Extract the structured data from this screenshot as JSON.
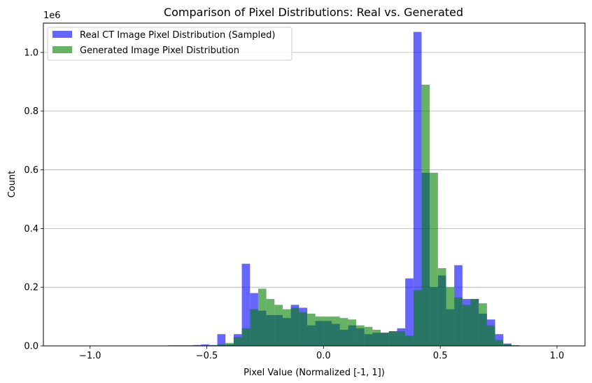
{
  "chart_data": {
    "type": "bar",
    "title": "Comparison of Pixel Distributions: Real vs. Generated",
    "xlabel": "Pixel Value (Normalized [-1, 1])",
    "ylabel": "Count",
    "y_offset_text": "1e6",
    "xlim": [
      -1.2,
      1.12
    ],
    "ylim": [
      0,
      1.1
    ],
    "x_ticks": [
      -1.0,
      -0.5,
      0.0,
      0.5,
      1.0
    ],
    "x_tick_labels": [
      "−1.0",
      "−0.5",
      "0.0",
      "0.5",
      "1.0"
    ],
    "y_ticks": [
      0.0,
      0.2,
      0.4,
      0.6,
      0.8,
      1.0
    ],
    "y_tick_labels": [
      "0.0",
      "0.2",
      "0.4",
      "0.6",
      "0.8",
      "1.0"
    ],
    "grid": "y",
    "legend_position": "top-left",
    "series": [
      {
        "name": "Real CT Image Pixel Distribution (Sampled)",
        "color": "#0000ff",
        "opacity": 0.6,
        "bin_edges": [
          -0.665,
          -0.63,
          -0.595,
          -0.56,
          -0.525,
          -0.49,
          -0.455,
          -0.42,
          -0.385,
          -0.35,
          -0.315,
          -0.28,
          -0.245,
          -0.21,
          -0.175,
          -0.14,
          -0.105,
          -0.07,
          -0.035,
          0.0,
          0.035,
          0.07,
          0.105,
          0.14,
          0.175,
          0.21,
          0.245,
          0.28,
          0.315,
          0.35,
          0.385,
          0.42,
          0.455,
          0.49,
          0.525,
          0.56,
          0.595,
          0.63,
          0.665,
          0.7,
          0.735,
          0.77,
          0.805,
          0.84,
          0.875
        ],
        "values": [
          0.002,
          0.002,
          0.002,
          0.003,
          0.005,
          0.003,
          0.04,
          0.005,
          0.04,
          0.28,
          0.18,
          0.12,
          0.105,
          0.105,
          0.095,
          0.14,
          0.13,
          0.07,
          0.085,
          0.085,
          0.075,
          0.055,
          0.07,
          0.06,
          0.04,
          0.045,
          0.045,
          0.05,
          0.06,
          0.23,
          1.07,
          0.59,
          0.2,
          0.24,
          0.125,
          0.275,
          0.16,
          0.16,
          0.11,
          0.09,
          0.04,
          0.008,
          0.002,
          0.001
        ]
      },
      {
        "name": "Generated Image Pixel Distribution",
        "color": "#008000",
        "opacity": 0.6,
        "bin_edges": [
          -0.455,
          -0.42,
          -0.385,
          -0.35,
          -0.315,
          -0.28,
          -0.245,
          -0.21,
          -0.175,
          -0.14,
          -0.105,
          -0.07,
          -0.035,
          0.0,
          0.035,
          0.07,
          0.105,
          0.14,
          0.175,
          0.21,
          0.245,
          0.28,
          0.315,
          0.35,
          0.385,
          0.42,
          0.455,
          0.49,
          0.525,
          0.56,
          0.595,
          0.63,
          0.665,
          0.7,
          0.735,
          0.77,
          0.805,
          0.84,
          0.875,
          0.91
        ],
        "values": [
          0.005,
          0.01,
          0.03,
          0.06,
          0.125,
          0.195,
          0.16,
          0.14,
          0.125,
          0.13,
          0.115,
          0.11,
          0.1,
          0.1,
          0.1,
          0.095,
          0.09,
          0.07,
          0.065,
          0.055,
          0.045,
          0.05,
          0.05,
          0.035,
          0.19,
          0.89,
          0.59,
          0.265,
          0.2,
          0.165,
          0.14,
          0.16,
          0.145,
          0.07,
          0.02,
          0.005,
          0.002,
          0.001,
          0.0005
        ]
      }
    ]
  }
}
